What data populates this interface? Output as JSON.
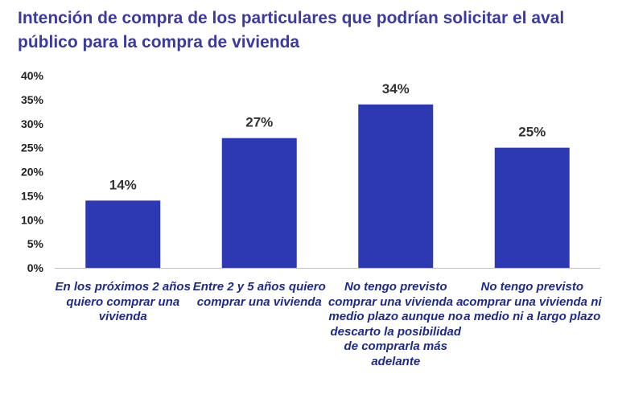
{
  "chart_data": {
    "type": "bar",
    "title": "Intención de compra de los particulares que podrían solicitar el aval público para la compra de vivienda",
    "categories": [
      "En los próximos 2 años quiero comprar una vivienda",
      "Entre 2 y 5 años quiero comprar una vivienda",
      "No tengo previsto comprar una vivienda a medio plazo aunque no descarto la posibilidad de comprarla más adelante",
      "No tengo previsto comprar una vivienda ni a medio ni a largo plazo"
    ],
    "values": [
      14,
      27,
      34,
      25
    ],
    "data_labels": [
      "14%",
      "27%",
      "34%",
      "25%"
    ],
    "yticks": [
      "0%",
      "5%",
      "10%",
      "15%",
      "20%",
      "25%",
      "30%",
      "35%",
      "40%"
    ],
    "ylim": [
      0,
      40
    ],
    "grid": false,
    "legend": "none",
    "bar_color": "#2d38b3",
    "title_color": "#3a3aa0",
    "category_label_color": "#1e2a8a"
  }
}
